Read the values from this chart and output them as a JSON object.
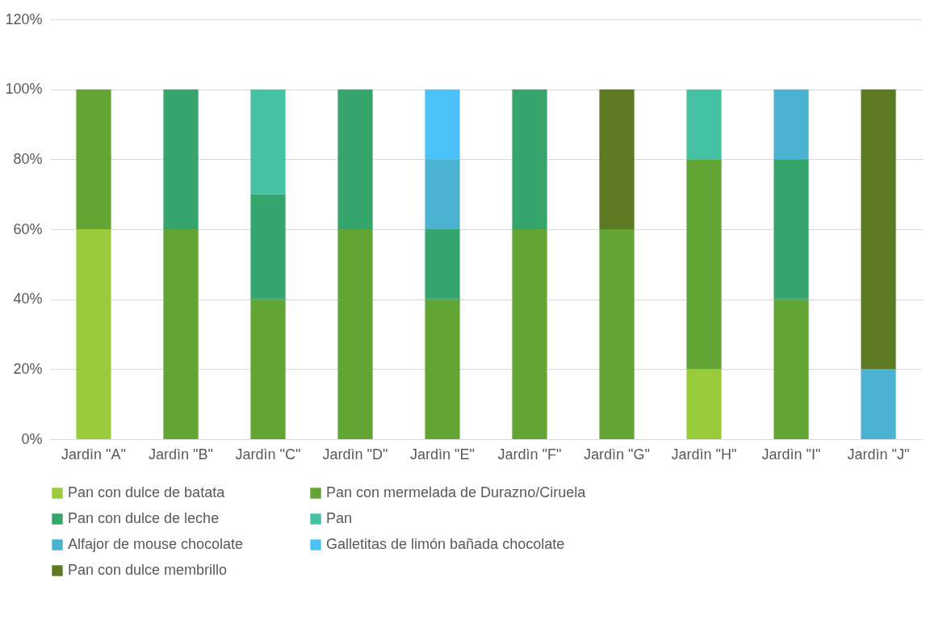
{
  "chart_data": {
    "type": "bar",
    "stacked": true,
    "categories": [
      "Jardìn \"A\"",
      "Jardìn \"B\"",
      "Jardìn \"C\"",
      "Jardìn \"D\"",
      "Jardìn \"E\"",
      "Jardìn \"F\"",
      "Jardìn \"G\"",
      "Jardìn \"H\"",
      "Jardìn \"I\"",
      "Jardìn \"J\""
    ],
    "series": [
      {
        "name": "Pan con dulce de batata",
        "color": "#9acb3a",
        "values": [
          60,
          null,
          null,
          null,
          null,
          null,
          null,
          20,
          null,
          null
        ]
      },
      {
        "name": "Pan con mermelada de Durazno/Ciruela",
        "color": "#62a535",
        "values": [
          40,
          60,
          40,
          60,
          40,
          60,
          60,
          60,
          40,
          null
        ]
      },
      {
        "name": "Pan con dulce de leche",
        "color": "#35a56b",
        "values": [
          null,
          40,
          30,
          40,
          20,
          40,
          null,
          null,
          40,
          null
        ]
      },
      {
        "name": "Pan",
        "color": "#44c2a3",
        "values": [
          null,
          null,
          30,
          null,
          null,
          null,
          null,
          20,
          null,
          null
        ]
      },
      {
        "name": "Alfajor de mouse chocolate",
        "color": "#4bb2d1",
        "values": [
          null,
          null,
          null,
          null,
          20,
          null,
          null,
          null,
          20,
          20
        ]
      },
      {
        "name": "Galletitas de limón bañada chocolate",
        "color": "#4dc2f8",
        "values": [
          null,
          null,
          null,
          null,
          20,
          null,
          null,
          null,
          null,
          null
        ]
      },
      {
        "name": "Pan con dulce membrillo",
        "color": "#5c7a22",
        "values": [
          null,
          null,
          null,
          null,
          null,
          null,
          40,
          null,
          null,
          80
        ]
      }
    ],
    "ylim": [
      0,
      120
    ],
    "yticks": [
      {
        "value": 0,
        "label": "0%"
      },
      {
        "value": 20,
        "label": "20%"
      },
      {
        "value": 40,
        "label": "40%"
      },
      {
        "value": 60,
        "label": "60%"
      },
      {
        "value": 80,
        "label": "80%"
      },
      {
        "value": 100,
        "label": "100%"
      },
      {
        "value": 120,
        "label": "120%"
      }
    ],
    "grid": "y",
    "legend": "bottom"
  }
}
